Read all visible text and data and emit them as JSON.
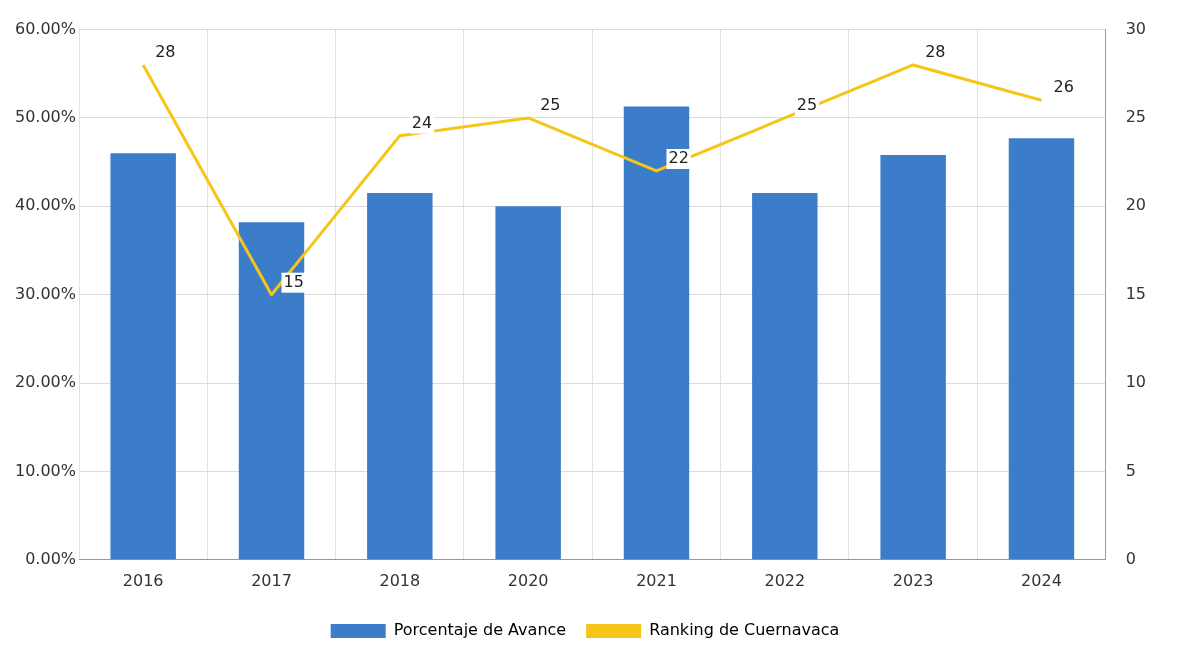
{
  "chart_data": {
    "type": "bar",
    "categories": [
      "2016",
      "2017",
      "2018",
      "2020",
      "2021",
      "2022",
      "2023",
      "2024"
    ],
    "series": [
      {
        "name": "Porcentaje de Avance",
        "color": "#3b7dc9",
        "values": [
          46.0,
          38.2,
          41.5,
          40.0,
          51.3,
          41.5,
          45.8,
          47.7
        ]
      },
      {
        "name": "Ranking de Cuernavaca",
        "type": "line",
        "axis": "y2",
        "color": "#f5c518",
        "values": [
          28,
          15,
          24,
          25,
          22,
          25,
          28,
          26
        ],
        "value_labels": [
          "28",
          "15",
          "24",
          "25",
          "22",
          "25",
          "28",
          "26"
        ]
      }
    ],
    "ylim": [
      0,
      60
    ],
    "yticks": [
      {
        "value": 0,
        "label": "0.00%"
      },
      {
        "value": 10,
        "label": "10.00%"
      },
      {
        "value": 20,
        "label": "20.00%"
      },
      {
        "value": 30,
        "label": "30.00%"
      },
      {
        "value": 40,
        "label": "40.00%"
      },
      {
        "value": 50,
        "label": "50.00%"
      },
      {
        "value": 60,
        "label": "60.00%"
      }
    ],
    "y2lim": [
      0,
      30
    ],
    "y2ticks": [
      0,
      5,
      10,
      15,
      20,
      25,
      30
    ],
    "grid": true,
    "legend": "bottom",
    "marker": "none",
    "line_style": "solid"
  }
}
